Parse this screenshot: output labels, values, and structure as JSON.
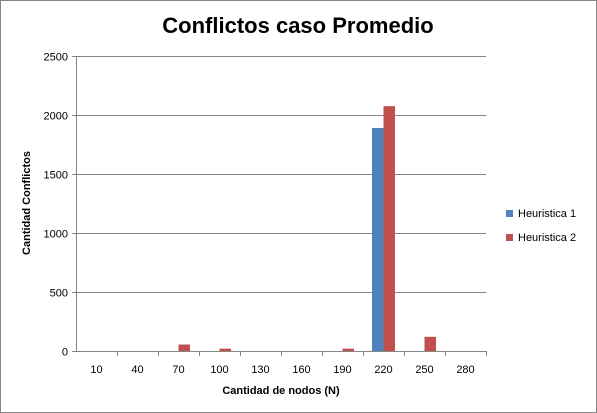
{
  "chart_data": {
    "type": "bar",
    "title": "Conflictos caso Promedio",
    "xlabel": "Cantidad  de nodos (N)",
    "ylabel": "Cantidad  Conflictos",
    "categories": [
      "10",
      "40",
      "70",
      "100",
      "130",
      "160",
      "190",
      "220",
      "250",
      "280"
    ],
    "series": [
      {
        "name": "Heuristica 1",
        "color": "#4F81BD",
        "values": [
          0,
          0,
          0,
          0,
          0,
          0,
          0,
          1890,
          0,
          0
        ]
      },
      {
        "name": "Heuristica 2",
        "color": "#C0504D",
        "values": [
          0,
          0,
          55,
          20,
          0,
          0,
          20,
          2075,
          120,
          0
        ]
      }
    ],
    "ylim": [
      0,
      2500
    ],
    "yticks": [
      0,
      500,
      1000,
      1500,
      2000,
      2500
    ],
    "grid": true,
    "legend": "right"
  }
}
